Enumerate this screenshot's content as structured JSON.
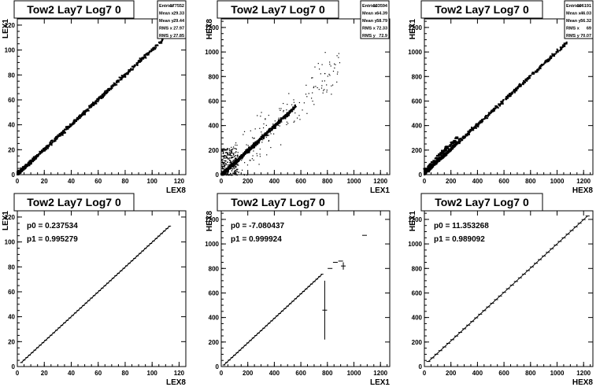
{
  "chart_data": [
    {
      "type": "scatter",
      "title": "Tow2 Lay7 Log7 0",
      "xlabel": "LEX8",
      "ylabel": "LEX1",
      "xlim": [
        0,
        125
      ],
      "ylim": [
        0,
        125
      ],
      "xticks": [
        0,
        20,
        40,
        60,
        80,
        100,
        120
      ],
      "yticks": [
        0,
        20,
        40,
        60,
        80,
        100,
        120
      ],
      "stats": [
        {
          "label": "Entries",
          "value": "177552"
        },
        {
          "label": "Mean x",
          "value": "29.33"
        },
        {
          "label": "Mean y",
          "value": "29.44"
        },
        {
          "label": "RMS x",
          "value": "27.97"
        },
        {
          "label": "RMS y",
          "value": "27.85"
        }
      ],
      "line": {
        "slope": 1.0,
        "intercept": 0.2,
        "xrange": [
          0,
          108
        ]
      }
    },
    {
      "type": "scatter",
      "title": "Tow2 Lay7 Log7 0",
      "xlabel": "LEX1",
      "ylabel": "HEX8",
      "xlim": [
        0,
        1270
      ],
      "ylim": [
        0,
        1270
      ],
      "xticks": [
        0,
        200,
        400,
        600,
        800,
        1000,
        1200
      ],
      "yticks": [
        0,
        200,
        400,
        600,
        800,
        1000,
        1200
      ],
      "stats": [
        {
          "label": "Entries",
          "value": "133594"
        },
        {
          "label": "Mean x",
          "value": "64.39"
        },
        {
          "label": "Mean y",
          "value": "58.79"
        },
        {
          "label": "RMS x",
          "value": "72.33"
        },
        {
          "label": "RMS y",
          "value": "72.9"
        }
      ],
      "line": {
        "slope": 1.0,
        "intercept": -7,
        "xrange": [
          0,
          560
        ]
      }
    },
    {
      "type": "scatter",
      "title": "Tow2 Lay7 Log7 0",
      "xlabel": "HEX8",
      "ylabel": "HEX1",
      "xlim": [
        0,
        1270
      ],
      "ylim": [
        0,
        1270
      ],
      "xticks": [
        0,
        200,
        400,
        600,
        800,
        1000,
        1200
      ],
      "yticks": [
        0,
        200,
        400,
        600,
        800,
        1000,
        1200
      ],
      "stats": [
        {
          "label": "Entries",
          "value": "196191"
        },
        {
          "label": "Mean x",
          "value": "46.03"
        },
        {
          "label": "Mean y",
          "value": "56.32"
        },
        {
          "label": "RMS x",
          "value": "69"
        },
        {
          "label": "RMS y",
          "value": "70.07"
        }
      ],
      "line": {
        "slope": 0.99,
        "intercept": 11,
        "xrange": [
          0,
          1080
        ]
      }
    },
    {
      "type": "line",
      "title": "Tow2 Lay7 Log7 0",
      "xlabel": "LEX8",
      "ylabel": "LEX1",
      "xlim": [
        0,
        125
      ],
      "ylim": [
        0,
        125
      ],
      "xticks": [
        0,
        20,
        40,
        60,
        80,
        100,
        120
      ],
      "yticks": [
        0,
        20,
        40,
        60,
        80,
        100,
        120
      ],
      "fit": [
        {
          "label": "p0",
          "value": "0.237534"
        },
        {
          "label": "p1",
          "value": "0.995279"
        }
      ],
      "p0": 0.237534,
      "p1": 0.995279,
      "points_x": [
        3,
        5,
        7,
        9,
        11,
        13,
        15,
        17,
        19,
        21,
        23,
        25,
        27,
        29,
        31,
        33,
        35,
        37,
        39,
        41,
        43,
        45,
        47,
        49,
        51,
        53,
        55,
        57,
        59,
        61,
        63,
        65,
        67,
        69,
        71,
        73,
        75,
        77,
        79,
        81,
        83,
        85,
        87,
        89,
        91,
        93,
        95,
        97,
        99,
        101,
        103,
        105,
        107,
        109,
        111,
        113
      ],
      "outliers": []
    },
    {
      "type": "line",
      "title": "Tow2 Lay7 Log7 0",
      "xlabel": "LEX1",
      "ylabel": "HEX8",
      "xlim": [
        0,
        1270
      ],
      "ylim": [
        0,
        1270
      ],
      "xticks": [
        0,
        200,
        400,
        600,
        800,
        1000,
        1200
      ],
      "yticks": [
        0,
        200,
        400,
        600,
        800,
        1000,
        1200
      ],
      "fit": [
        {
          "label": "p0",
          "value": "-7.080437"
        },
        {
          "label": "p1",
          "value": "0.999924"
        }
      ],
      "p0": -7.080437,
      "p1": 0.999924,
      "points_x": [
        20,
        40,
        60,
        80,
        100,
        120,
        140,
        160,
        180,
        200,
        220,
        240,
        260,
        280,
        300,
        320,
        340,
        360,
        380,
        400,
        420,
        440,
        460,
        480,
        500,
        520,
        540,
        560,
        580,
        600,
        620,
        640,
        660,
        680,
        700,
        720,
        740,
        760
      ],
      "outliers": [
        {
          "x": 780,
          "y": 460,
          "err": 240
        },
        {
          "x": 820,
          "y": 800,
          "err": 0
        },
        {
          "x": 860,
          "y": 850,
          "err": 0
        },
        {
          "x": 900,
          "y": 860,
          "err": 0
        },
        {
          "x": 920,
          "y": 820,
          "err": 30
        },
        {
          "x": 1080,
          "y": 1070,
          "err": 0
        }
      ]
    },
    {
      "type": "line",
      "title": "Tow2 Lay7 Log7 0",
      "xlabel": "HEX8",
      "ylabel": "HEX1",
      "xlim": [
        0,
        1270
      ],
      "ylim": [
        0,
        1270
      ],
      "xticks": [
        0,
        200,
        400,
        600,
        800,
        1000,
        1200
      ],
      "yticks": [
        0,
        200,
        400,
        600,
        800,
        1000,
        1200
      ],
      "fit": [
        {
          "label": "p0",
          "value": "11.353268"
        },
        {
          "label": "p1",
          "value": "0.989092"
        }
      ],
      "p0": 11.353268,
      "p1": 0.989092,
      "points_x": [
        30,
        60,
        90,
        120,
        150,
        180,
        210,
        240,
        270,
        300,
        330,
        360,
        390,
        420,
        450,
        480,
        510,
        540,
        570,
        600,
        630,
        660,
        690,
        720,
        750,
        780,
        810,
        840,
        870,
        900,
        930,
        960,
        990,
        1020,
        1050,
        1080,
        1110,
        1140,
        1170,
        1200,
        1230
      ],
      "outliers": []
    }
  ]
}
